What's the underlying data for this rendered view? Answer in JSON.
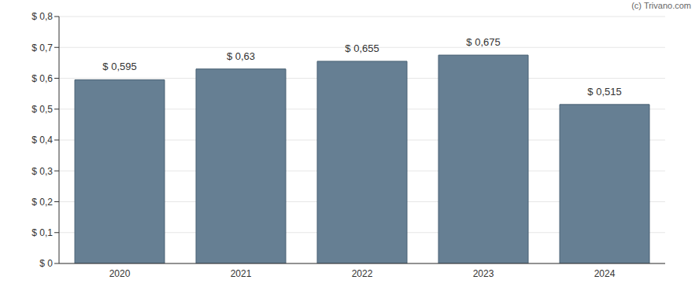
{
  "chart_data": {
    "type": "bar",
    "annotation": "(c) Trivano.com",
    "categories": [
      "2020",
      "2021",
      "2022",
      "2023",
      "2024"
    ],
    "values": [
      0.595,
      0.63,
      0.655,
      0.675,
      0.515
    ],
    "value_labels": [
      "$ 0,595",
      "$ 0,63",
      "$ 0,655",
      "$ 0,675",
      "$ 0,515"
    ],
    "data_labels": true,
    "color": "#667f93",
    "ylim": [
      0,
      0.8
    ],
    "yticks": [
      {
        "value": 0,
        "label": "$ 0"
      },
      {
        "value": 0.1,
        "label": "$ 0,1"
      },
      {
        "value": 0.2,
        "label": "$ 0,2"
      },
      {
        "value": 0.3,
        "label": "$ 0,3"
      },
      {
        "value": 0.4,
        "label": "$ 0,4"
      },
      {
        "value": 0.5,
        "label": "$ 0,5"
      },
      {
        "value": 0.6,
        "label": "$ 0,6"
      },
      {
        "value": 0.7,
        "label": "$ 0,7"
      },
      {
        "value": 0.8,
        "label": "$ 0,8"
      }
    ],
    "grid": true
  }
}
